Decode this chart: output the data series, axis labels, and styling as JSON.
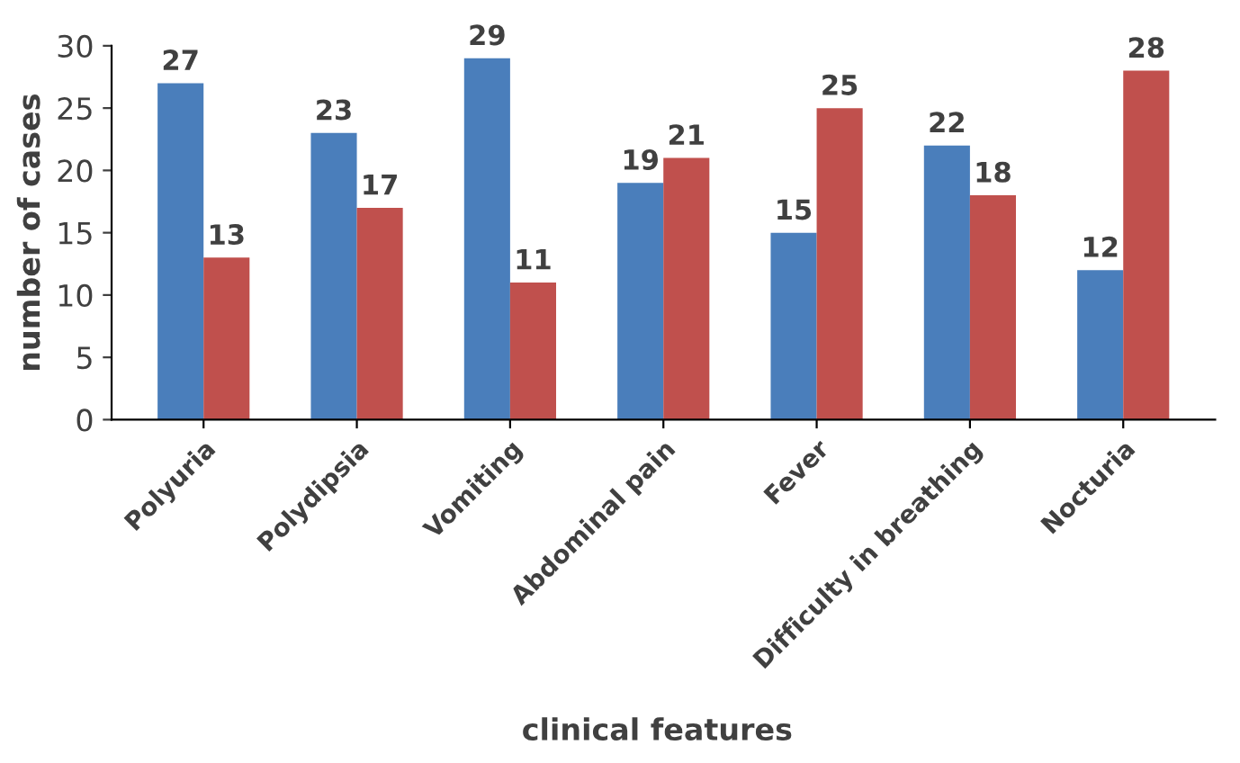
{
  "chart_data": {
    "type": "bar",
    "xlabel": "clinical features",
    "ylabel": "number of cases",
    "categories": [
      "Polyuria",
      "Polydipsia",
      "Vomiting",
      "Abdominal pain",
      "Fever",
      "Difficulty in breathing",
      "Nocturia"
    ],
    "series": [
      {
        "color": "#4a7ebb",
        "values": [
          27,
          23,
          29,
          19,
          15,
          22,
          12
        ]
      },
      {
        "color": "#c0504d",
        "values": [
          13,
          17,
          11,
          21,
          25,
          18,
          28
        ]
      }
    ],
    "ylim": [
      0,
      30
    ],
    "yticks": [
      0,
      5,
      10,
      15,
      20,
      25,
      30
    ],
    "grid": false,
    "data_labels": true
  }
}
